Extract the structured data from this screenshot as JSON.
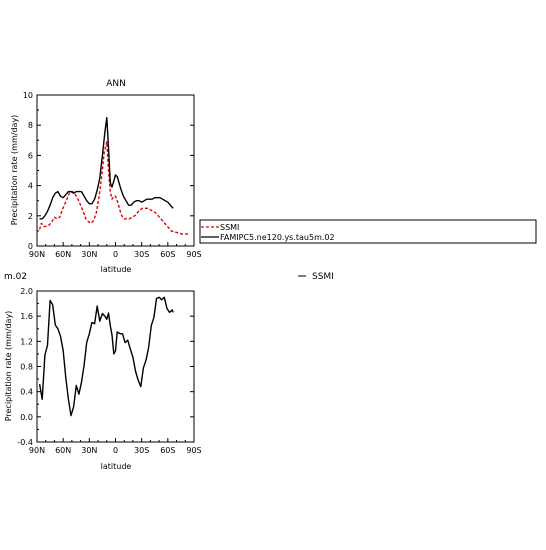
{
  "chart_data": [
    {
      "type": "line",
      "title": "ANN",
      "xlabel": "latitude",
      "ylabel": "Precipitation rate (mm/day)",
      "xlim": [
        90,
        -90
      ],
      "ylim": [
        0,
        10
      ],
      "x_ticks": [
        90,
        60,
        30,
        0,
        -30,
        -60,
        -90
      ],
      "x_tick_labels": [
        "90N",
        "60N",
        "30N",
        "0",
        "30S",
        "60S",
        "90S"
      ],
      "y_ticks": [
        0,
        2,
        4,
        6,
        8,
        10
      ],
      "y_tick_labels": [
        "0",
        "2",
        "4",
        "6",
        "8",
        "10"
      ],
      "legend": {
        "placement": "right",
        "entries": [
          "SSMI",
          "FAMIPC5.ne120.ys.tau5m.02"
        ]
      },
      "series": [
        {
          "name": "SSMI",
          "color": "#e00000",
          "dash": "dashed",
          "x": [
            87,
            85,
            82,
            79,
            76,
            73,
            70,
            67,
            64,
            61,
            58,
            55,
            52,
            49,
            46,
            43,
            40,
            37,
            34,
            31,
            28,
            25,
            22,
            19,
            16,
            13,
            10,
            8,
            6,
            4,
            2,
            0,
            -2,
            -4,
            -6,
            -8,
            -10,
            -13,
            -16,
            -19,
            -22,
            -25,
            -28,
            -31,
            -34,
            -37,
            -40,
            -43,
            -46,
            -49,
            -52,
            -55,
            -58,
            -61,
            -64,
            -67,
            -70,
            -73,
            -76,
            -79,
            -82,
            -85
          ],
          "y": [
            1.1,
            1.5,
            1.3,
            1.3,
            1.4,
            1.6,
            1.9,
            1.8,
            1.9,
            2.4,
            2.8,
            3.2,
            3.6,
            3.6,
            3.4,
            3.1,
            2.7,
            2.3,
            1.8,
            1.6,
            1.5,
            1.7,
            2.2,
            3.2,
            4.5,
            6.2,
            6.9,
            5.0,
            3.6,
            3.1,
            3.3,
            3.3,
            3.0,
            2.6,
            2.2,
            1.9,
            1.8,
            1.8,
            1.8,
            1.9,
            2.0,
            2.2,
            2.4,
            2.5,
            2.5,
            2.5,
            2.4,
            2.3,
            2.2,
            2.0,
            1.8,
            1.6,
            1.4,
            1.2,
            1.0,
            0.95,
            0.9,
            0.85,
            0.8,
            0.8,
            0.8,
            0.75
          ]
        },
        {
          "name": "FAMIPC5.ne120.ys.tau5m.02",
          "color": "#000000",
          "dash": "solid",
          "x": [
            87,
            84,
            81,
            78,
            75,
            72,
            69,
            66,
            63,
            60,
            57,
            54,
            51,
            48,
            45,
            42,
            39,
            36,
            33,
            30,
            27,
            24,
            21,
            18,
            15,
            12,
            10,
            8,
            6,
            4,
            2,
            0,
            -2,
            -4,
            -6,
            -9,
            -12,
            -15,
            -18,
            -21,
            -24,
            -27,
            -30,
            -33,
            -36,
            -39,
            -42,
            -45,
            -48,
            -51,
            -54,
            -57,
            -60,
            -63,
            -66
          ],
          "y": [
            1.8,
            1.8,
            2.0,
            2.3,
            2.7,
            3.2,
            3.5,
            3.6,
            3.3,
            3.2,
            3.4,
            3.6,
            3.6,
            3.5,
            3.6,
            3.6,
            3.6,
            3.3,
            3.0,
            2.8,
            2.8,
            3.1,
            3.7,
            4.5,
            6.0,
            7.6,
            8.5,
            6.5,
            4.2,
            3.9,
            4.3,
            4.7,
            4.6,
            4.2,
            3.8,
            3.3,
            3.0,
            2.7,
            2.7,
            2.9,
            3.0,
            3.0,
            2.9,
            3.0,
            3.1,
            3.1,
            3.1,
            3.2,
            3.2,
            3.2,
            3.1,
            3.0,
            2.9,
            2.7,
            2.5
          ]
        }
      ]
    },
    {
      "type": "line",
      "title_fragment": "m.02",
      "legend_fragment": "SSMI",
      "xlabel": "latitude",
      "ylabel": "Precipitation rate (mm/day)",
      "xlim": [
        90,
        -90
      ],
      "ylim": [
        -0.4,
        2.0
      ],
      "x_ticks": [
        90,
        60,
        30,
        0,
        -30,
        -60,
        -90
      ],
      "x_tick_labels": [
        "90N",
        "60N",
        "30N",
        "0",
        "30S",
        "60S",
        "90S"
      ],
      "y_ticks": [
        -0.4,
        0.0,
        0.4,
        0.8,
        1.2,
        1.6,
        2.0
      ],
      "y_tick_labels": [
        "-0.4",
        "0.0",
        "0.4",
        "0.8",
        "1.2",
        "1.6",
        "2.0"
      ],
      "series": [
        {
          "color": "#000000",
          "dash": "solid",
          "x": [
            87,
            84,
            81,
            78,
            75,
            72,
            69,
            66,
            63,
            60,
            57,
            54,
            51,
            48,
            45,
            42,
            39,
            36,
            33,
            30,
            27,
            24,
            21,
            18,
            15,
            12,
            10,
            8,
            6,
            4,
            2,
            0,
            -2,
            -4,
            -6,
            -8,
            -11,
            -14,
            -17,
            -20,
            -23,
            -26,
            -29,
            -32,
            -35,
            -38,
            -41,
            -44,
            -47,
            -50,
            -53,
            -56,
            -59,
            -62,
            -65,
            -66
          ],
          "y": [
            0.52,
            0.28,
            0.98,
            1.14,
            1.85,
            1.78,
            1.46,
            1.4,
            1.28,
            1.05,
            0.62,
            0.28,
            0.02,
            0.16,
            0.5,
            0.36,
            0.55,
            0.82,
            1.18,
            1.32,
            1.5,
            1.48,
            1.76,
            1.52,
            1.64,
            1.6,
            1.55,
            1.65,
            1.45,
            1.3,
            1.0,
            1.05,
            1.35,
            1.33,
            1.32,
            1.32,
            1.18,
            1.22,
            1.08,
            0.95,
            0.72,
            0.58,
            0.48,
            0.78,
            0.9,
            1.1,
            1.45,
            1.58,
            1.88,
            1.9,
            1.86,
            1.9,
            1.72,
            1.66,
            1.7,
            1.66
          ]
        }
      ]
    }
  ]
}
